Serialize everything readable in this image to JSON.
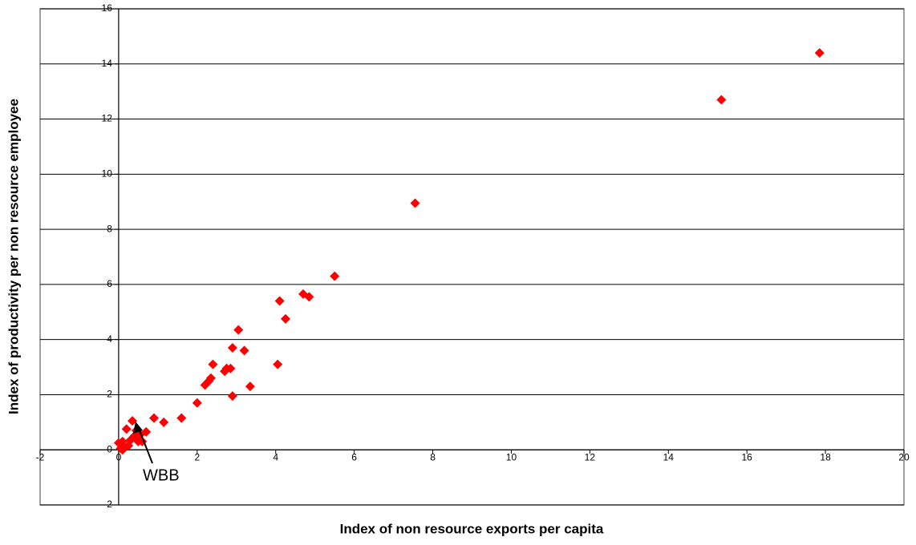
{
  "chart_data": {
    "type": "scatter",
    "x_label": "Index of non resource exports per capita",
    "y_label": "Index of productivity per non resource employee",
    "xlim": [
      -2,
      20
    ],
    "ylim": [
      -2,
      16
    ],
    "xticks": [
      -2,
      0,
      2,
      4,
      6,
      8,
      10,
      12,
      14,
      16,
      18,
      20
    ],
    "yticks": [
      -2,
      0,
      2,
      4,
      6,
      8,
      10,
      12,
      14,
      16
    ],
    "grid": true,
    "series": [
      {
        "color": "#ff0000",
        "x": [
          17.85,
          15.35,
          7.55,
          5.5,
          4.7,
          4.85,
          4.1,
          4.25,
          3.05,
          2.9,
          3.2,
          2.4,
          4.05,
          2.75,
          2.85,
          2.7,
          2.35,
          2.3,
          2.2,
          3.35,
          2.9,
          2.0,
          1.6,
          0.9,
          1.15,
          0.35,
          0.7,
          0.55,
          0.2,
          0.4,
          0.3,
          0.1,
          0.0,
          0.5,
          0.15,
          0.05,
          0.25,
          0.6,
          0.45,
          0.1
        ],
        "values": [
          14.4,
          12.7,
          8.95,
          6.3,
          5.65,
          5.55,
          5.4,
          4.75,
          4.35,
          3.7,
          3.6,
          3.1,
          3.1,
          2.95,
          2.95,
          2.85,
          2.6,
          2.5,
          2.35,
          2.3,
          1.95,
          1.7,
          1.15,
          1.15,
          1.0,
          1.05,
          0.65,
          0.55,
          0.75,
          0.5,
          0.35,
          0.3,
          0.25,
          0.3,
          0.1,
          0.05,
          0.15,
          0.3,
          0.7,
          0.0
        ]
      }
    ],
    "annotations": [
      {
        "text": "WBB"
      }
    ]
  }
}
